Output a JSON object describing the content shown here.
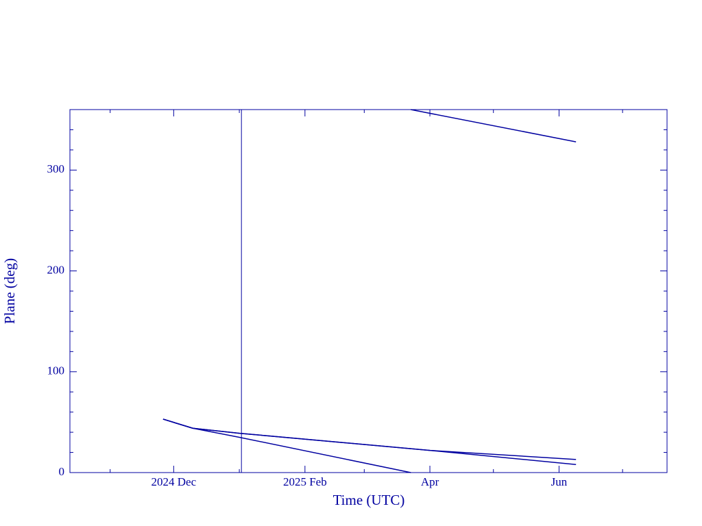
{
  "chart_data": {
    "type": "line",
    "x_label": "Time (UTC)",
    "y_label": "Plane (deg)",
    "xlim": [
      "2024-10-13",
      "2025-07-22"
    ],
    "xticks": [
      {
        "value": "2024-12-01",
        "label": "2024 Dec"
      },
      {
        "value": "2025-02-01",
        "label": "2025 Feb"
      },
      {
        "value": "2025-04-01",
        "label": "Apr"
      },
      {
        "value": "2025-06-01",
        "label": "Jun"
      }
    ],
    "xminorticks": [
      "2024-11-01",
      "2025-01-01",
      "2025-03-01",
      "2025-05-01",
      "2025-07-01"
    ],
    "ylim": [
      0,
      360
    ],
    "yticks": [
      0,
      100,
      200,
      300
    ],
    "yminorticks": [
      20,
      40,
      60,
      80,
      120,
      140,
      160,
      180,
      220,
      240,
      260,
      280,
      320,
      340
    ],
    "vlines": [
      "2025-01-02"
    ],
    "color": "#0000a0",
    "series": [
      {
        "x": [
          "2024-11-26",
          "2024-12-10",
          "2025-01-01",
          "2025-04-01",
          "2025-06-09"
        ],
        "values": [
          53,
          44,
          39,
          22,
          13
        ]
      },
      {
        "x": [
          "2024-11-26",
          "2024-12-10",
          "2025-01-01",
          "2025-04-01",
          "2025-06-09"
        ],
        "values": [
          53,
          44,
          39,
          22,
          8
        ]
      },
      {
        "x": [
          "2024-11-26",
          "2024-12-10",
          "2025-01-01",
          "2025-03-23",
          null,
          "2025-03-23",
          "2025-06-09"
        ],
        "values": [
          53,
          44,
          35,
          0,
          null,
          360,
          328
        ]
      }
    ]
  }
}
